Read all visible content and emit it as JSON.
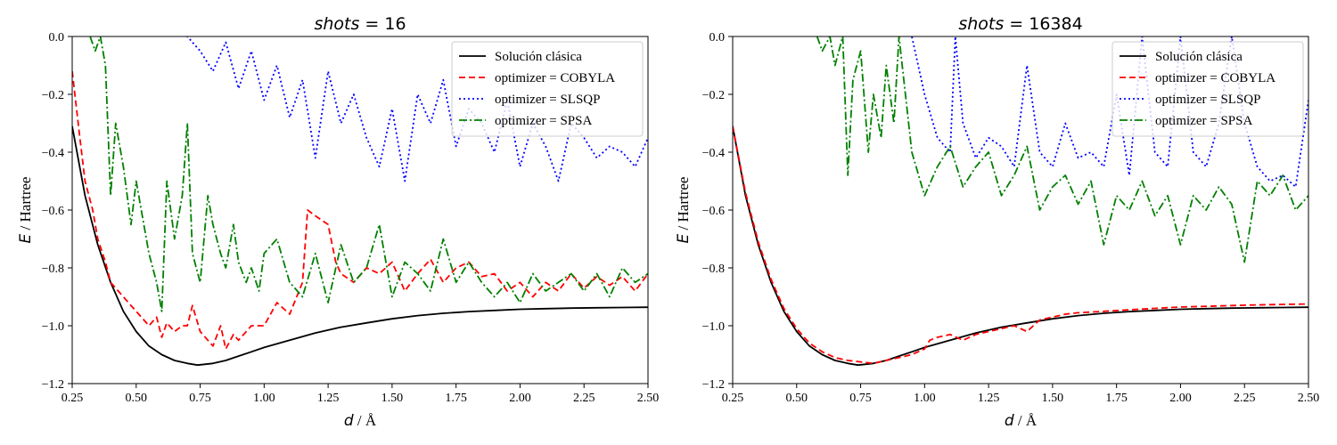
{
  "chart_data": [
    {
      "type": "line",
      "title_var": "shots",
      "title_eq": " = 16",
      "xlabel_var": "d",
      "xlabel_unit": " / Å",
      "ylabel_var": "E",
      "ylabel_unit": " / Hartree",
      "xlim": [
        0.25,
        2.5
      ],
      "ylim": [
        -1.2,
        0.0
      ],
      "xticks": [
        0.25,
        0.5,
        0.75,
        1.0,
        1.25,
        1.5,
        1.75,
        2.0,
        2.25,
        2.5
      ],
      "xtick_labels": [
        "0.25",
        "0.50",
        "0.75",
        "1.00",
        "1.25",
        "1.50",
        "1.75",
        "2.00",
        "2.25",
        "2.50"
      ],
      "yticks": [
        -1.2,
        -1.0,
        -0.8,
        -0.6,
        -0.4,
        -0.2,
        0.0
      ],
      "ytick_labels": [
        "−1.2",
        "−1.0",
        "−0.8",
        "−0.6",
        "−0.4",
        "−0.2",
        "0.0"
      ],
      "legend_position": "top-right",
      "grid": false,
      "series": [
        {
          "name": "Solución clásica",
          "color": "#000000",
          "style": "solid",
          "x": [
            0.25,
            0.3,
            0.35,
            0.4,
            0.45,
            0.5,
            0.55,
            0.6,
            0.65,
            0.7,
            0.74,
            0.8,
            0.85,
            0.9,
            0.95,
            1.0,
            1.1,
            1.2,
            1.3,
            1.4,
            1.5,
            1.6,
            1.7,
            1.8,
            1.9,
            2.0,
            2.1,
            2.2,
            2.3,
            2.4,
            2.5
          ],
          "y": [
            -0.31,
            -0.55,
            -0.72,
            -0.85,
            -0.95,
            -1.02,
            -1.07,
            -1.1,
            -1.12,
            -1.13,
            -1.136,
            -1.13,
            -1.12,
            -1.105,
            -1.09,
            -1.075,
            -1.05,
            -1.025,
            -1.005,
            -0.99,
            -0.976,
            -0.965,
            -0.957,
            -0.951,
            -0.947,
            -0.943,
            -0.941,
            -0.939,
            -0.938,
            -0.937,
            -0.936
          ]
        },
        {
          "name": "optimizer = COBYLA",
          "color": "#ff0000",
          "style": "dashed",
          "x": [
            0.25,
            0.28,
            0.3,
            0.33,
            0.35,
            0.38,
            0.4,
            0.45,
            0.48,
            0.5,
            0.53,
            0.55,
            0.58,
            0.6,
            0.62,
            0.65,
            0.68,
            0.7,
            0.72,
            0.75,
            0.78,
            0.8,
            0.83,
            0.85,
            0.88,
            0.9,
            0.95,
            1.0,
            1.05,
            1.1,
            1.15,
            1.17,
            1.2,
            1.25,
            1.28,
            1.3,
            1.35,
            1.4,
            1.45,
            1.5,
            1.55,
            1.6,
            1.65,
            1.7,
            1.75,
            1.8,
            1.85,
            1.9,
            1.95,
            2.0,
            2.05,
            2.1,
            2.15,
            2.2,
            2.25,
            2.3,
            2.35,
            2.4,
            2.45,
            2.5
          ],
          "y": [
            -0.12,
            -0.35,
            -0.5,
            -0.6,
            -0.7,
            -0.78,
            -0.85,
            -0.9,
            -0.93,
            -0.95,
            -0.98,
            -1.0,
            -0.97,
            -1.04,
            -0.99,
            -1.02,
            -1.0,
            -1.0,
            -0.93,
            -1.02,
            -1.05,
            -1.07,
            -1.0,
            -1.08,
            -1.03,
            -1.05,
            -1.0,
            -1.0,
            -0.92,
            -0.96,
            -0.85,
            -0.6,
            -0.62,
            -0.65,
            -0.78,
            -0.82,
            -0.85,
            -0.8,
            -0.82,
            -0.78,
            -0.88,
            -0.82,
            -0.77,
            -0.85,
            -0.8,
            -0.78,
            -0.83,
            -0.82,
            -0.88,
            -0.85,
            -0.9,
            -0.85,
            -0.88,
            -0.82,
            -0.87,
            -0.83,
            -0.86,
            -0.83,
            -0.88,
            -0.82
          ]
        },
        {
          "name": "optimizer = SLSQP",
          "color": "#0000ff",
          "style": "dotted",
          "x": [
            0.25,
            0.6,
            0.7,
            0.75,
            0.8,
            0.85,
            0.9,
            0.95,
            1.0,
            1.05,
            1.1,
            1.15,
            1.2,
            1.25,
            1.3,
            1.35,
            1.4,
            1.45,
            1.5,
            1.55,
            1.6,
            1.65,
            1.7,
            1.75,
            1.8,
            1.85,
            1.9,
            1.95,
            2.0,
            2.05,
            2.1,
            2.15,
            2.2,
            2.25,
            2.3,
            2.35,
            2.4,
            2.45,
            2.5
          ],
          "y": [
            0.05,
            0.03,
            0.0,
            -0.05,
            -0.12,
            -0.02,
            -0.18,
            -0.05,
            -0.22,
            -0.1,
            -0.28,
            -0.15,
            -0.42,
            -0.12,
            -0.3,
            -0.2,
            -0.35,
            -0.45,
            -0.25,
            -0.5,
            -0.2,
            -0.3,
            -0.15,
            -0.38,
            -0.25,
            -0.3,
            -0.4,
            -0.22,
            -0.45,
            -0.3,
            -0.38,
            -0.5,
            -0.3,
            -0.35,
            -0.42,
            -0.38,
            -0.4,
            -0.45,
            -0.35
          ]
        },
        {
          "name": "optimizer = SPSA",
          "color": "#008000",
          "style": "dashdot",
          "x": [
            0.32,
            0.34,
            0.36,
            0.38,
            0.4,
            0.42,
            0.45,
            0.48,
            0.5,
            0.52,
            0.55,
            0.58,
            0.6,
            0.62,
            0.65,
            0.68,
            0.7,
            0.72,
            0.75,
            0.78,
            0.8,
            0.83,
            0.85,
            0.88,
            0.9,
            0.93,
            0.95,
            0.98,
            1.0,
            1.05,
            1.1,
            1.15,
            1.2,
            1.25,
            1.3,
            1.35,
            1.4,
            1.45,
            1.5,
            1.55,
            1.6,
            1.65,
            1.7,
            1.75,
            1.8,
            1.85,
            1.9,
            1.95,
            2.0,
            2.05,
            2.1,
            2.15,
            2.2,
            2.25,
            2.3,
            2.35,
            2.4,
            2.45,
            2.5
          ],
          "y": [
            0.0,
            -0.05,
            0.0,
            -0.1,
            -0.55,
            -0.3,
            -0.45,
            -0.65,
            -0.5,
            -0.6,
            -0.75,
            -0.85,
            -0.95,
            -0.5,
            -0.7,
            -0.55,
            -0.3,
            -0.75,
            -0.85,
            -0.55,
            -0.65,
            -0.75,
            -0.8,
            -0.65,
            -0.78,
            -0.85,
            -0.8,
            -0.88,
            -0.75,
            -0.7,
            -0.85,
            -0.9,
            -0.75,
            -0.92,
            -0.72,
            -0.85,
            -0.8,
            -0.65,
            -0.9,
            -0.78,
            -0.82,
            -0.88,
            -0.7,
            -0.85,
            -0.78,
            -0.85,
            -0.9,
            -0.85,
            -0.92,
            -0.82,
            -0.88,
            -0.85,
            -0.82,
            -0.88,
            -0.82,
            -0.9,
            -0.8,
            -0.85,
            -0.82
          ]
        }
      ]
    },
    {
      "type": "line",
      "title_var": "shots",
      "title_eq": " = 16384",
      "xlabel_var": "d",
      "xlabel_unit": " / Å",
      "ylabel_var": "E",
      "ylabel_unit": " / Hartree",
      "xlim": [
        0.25,
        2.5
      ],
      "ylim": [
        -1.2,
        0.0
      ],
      "xticks": [
        0.25,
        0.5,
        0.75,
        1.0,
        1.25,
        1.5,
        1.75,
        2.0,
        2.25,
        2.5
      ],
      "xtick_labels": [
        "0.25",
        "0.50",
        "0.75",
        "1.00",
        "1.25",
        "1.50",
        "1.75",
        "2.00",
        "2.25",
        "2.50"
      ],
      "yticks": [
        -1.2,
        -1.0,
        -0.8,
        -0.6,
        -0.4,
        -0.2,
        0.0
      ],
      "ytick_labels": [
        "−1.2",
        "−1.0",
        "−0.8",
        "−0.6",
        "−0.4",
        "−0.2",
        "0.0"
      ],
      "legend_position": "top-right",
      "grid": false,
      "series": [
        {
          "name": "Solución clásica",
          "color": "#000000",
          "style": "solid",
          "x": [
            0.25,
            0.3,
            0.35,
            0.4,
            0.45,
            0.5,
            0.55,
            0.6,
            0.65,
            0.7,
            0.74,
            0.8,
            0.85,
            0.9,
            0.95,
            1.0,
            1.1,
            1.2,
            1.3,
            1.4,
            1.5,
            1.6,
            1.7,
            1.8,
            1.9,
            2.0,
            2.1,
            2.2,
            2.3,
            2.4,
            2.5
          ],
          "y": [
            -0.31,
            -0.55,
            -0.72,
            -0.85,
            -0.95,
            -1.02,
            -1.07,
            -1.1,
            -1.12,
            -1.13,
            -1.136,
            -1.13,
            -1.12,
            -1.105,
            -1.09,
            -1.075,
            -1.05,
            -1.025,
            -1.005,
            -0.99,
            -0.976,
            -0.965,
            -0.957,
            -0.951,
            -0.947,
            -0.943,
            -0.941,
            -0.939,
            -0.938,
            -0.937,
            -0.936
          ]
        },
        {
          "name": "optimizer = COBYLA",
          "color": "#ff0000",
          "style": "dashed",
          "x": [
            0.25,
            0.3,
            0.35,
            0.4,
            0.45,
            0.5,
            0.55,
            0.6,
            0.65,
            0.7,
            0.75,
            0.8,
            0.85,
            0.9,
            0.95,
            1.0,
            1.02,
            1.05,
            1.1,
            1.15,
            1.2,
            1.25,
            1.3,
            1.35,
            1.4,
            1.45,
            1.5,
            1.55,
            1.6,
            1.7,
            1.8,
            1.9,
            2.0,
            2.1,
            2.2,
            2.3,
            2.4,
            2.5
          ],
          "y": [
            -0.31,
            -0.54,
            -0.71,
            -0.84,
            -0.94,
            -1.01,
            -1.06,
            -1.09,
            -1.11,
            -1.12,
            -1.125,
            -1.13,
            -1.12,
            -1.11,
            -1.1,
            -1.08,
            -1.05,
            -1.04,
            -1.03,
            -1.05,
            -1.03,
            -1.02,
            -1.01,
            -1.0,
            -1.02,
            -0.98,
            -0.97,
            -0.96,
            -0.955,
            -0.95,
            -0.945,
            -0.94,
            -0.935,
            -0.933,
            -0.93,
            -0.928,
            -0.926,
            -0.925
          ]
        },
        {
          "name": "optimizer = SLSQP",
          "color": "#0000ff",
          "style": "dotted",
          "x": [
            0.75,
            0.85,
            0.95,
            1.0,
            1.05,
            1.1,
            1.12,
            1.15,
            1.2,
            1.25,
            1.3,
            1.35,
            1.4,
            1.45,
            1.5,
            1.55,
            1.6,
            1.65,
            1.7,
            1.75,
            1.8,
            1.85,
            1.9,
            1.95,
            2.0,
            2.05,
            2.1,
            2.15,
            2.2,
            2.25,
            2.3,
            2.35,
            2.4,
            2.45,
            2.5
          ],
          "y": [
            0.05,
            0.03,
            0.0,
            -0.2,
            -0.35,
            -0.4,
            0.0,
            -0.3,
            -0.42,
            -0.35,
            -0.38,
            -0.45,
            -0.1,
            -0.4,
            -0.45,
            -0.3,
            -0.42,
            -0.4,
            -0.45,
            -0.2,
            -0.48,
            0.0,
            -0.4,
            -0.45,
            0.0,
            -0.4,
            -0.45,
            -0.3,
            0.0,
            -0.3,
            -0.45,
            -0.5,
            -0.48,
            -0.52,
            -0.22
          ]
        },
        {
          "name": "optimizer = SPSA",
          "color": "#008000",
          "style": "dashdot",
          "x": [
            0.58,
            0.6,
            0.63,
            0.65,
            0.68,
            0.7,
            0.72,
            0.75,
            0.78,
            0.8,
            0.83,
            0.85,
            0.88,
            0.9,
            0.95,
            1.0,
            1.05,
            1.1,
            1.15,
            1.2,
            1.25,
            1.3,
            1.35,
            1.4,
            1.45,
            1.5,
            1.55,
            1.6,
            1.65,
            1.7,
            1.75,
            1.8,
            1.85,
            1.9,
            1.95,
            2.0,
            2.05,
            2.1,
            2.15,
            2.2,
            2.25,
            2.3,
            2.35,
            2.4,
            2.45,
            2.5
          ],
          "y": [
            0.0,
            -0.05,
            0.0,
            -0.1,
            0.0,
            -0.48,
            -0.15,
            -0.05,
            -0.4,
            -0.2,
            -0.35,
            -0.1,
            -0.3,
            0.0,
            -0.4,
            -0.55,
            -0.45,
            -0.38,
            -0.52,
            -0.45,
            -0.4,
            -0.55,
            -0.48,
            -0.38,
            -0.6,
            -0.52,
            -0.48,
            -0.58,
            -0.5,
            -0.72,
            -0.55,
            -0.6,
            -0.5,
            -0.62,
            -0.55,
            -0.72,
            -0.55,
            -0.6,
            -0.52,
            -0.58,
            -0.78,
            -0.5,
            -0.55,
            -0.48,
            -0.6,
            -0.55
          ]
        }
      ]
    }
  ]
}
